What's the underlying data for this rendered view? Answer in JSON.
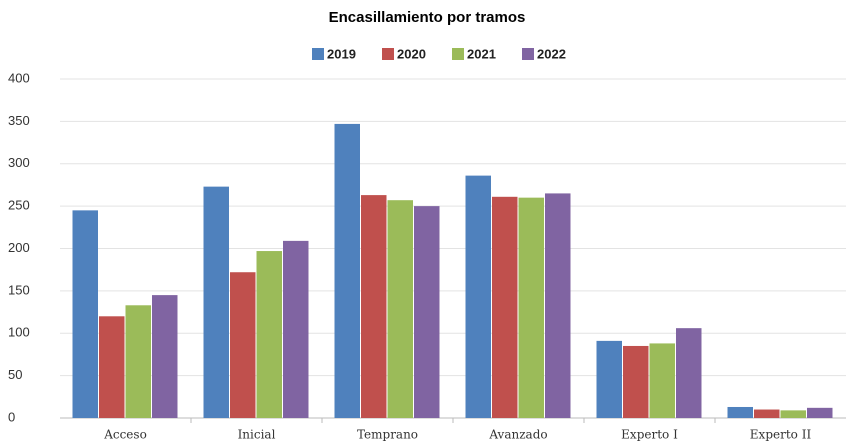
{
  "chart_data": {
    "type": "bar",
    "title": "Encasillamiento por tramos",
    "categories": [
      "Acceso",
      "Inicial",
      "Temprano",
      "Avanzado",
      "Experto I",
      "Experto II"
    ],
    "series": [
      {
        "name": "2019",
        "color": "#4f81bd",
        "values": [
          245,
          273,
          347,
          286,
          91,
          13
        ]
      },
      {
        "name": "2020",
        "color": "#c0504d",
        "values": [
          120,
          172,
          263,
          261,
          85,
          10
        ]
      },
      {
        "name": "2021",
        "color": "#9bbb59",
        "values": [
          133,
          197,
          257,
          260,
          88,
          9
        ]
      },
      {
        "name": "2022",
        "color": "#8064a2",
        "values": [
          145,
          209,
          250,
          265,
          106,
          12
        ]
      }
    ],
    "ylim": [
      0,
      400
    ],
    "yticks": [
      0,
      50,
      100,
      150,
      200,
      250,
      300,
      350,
      400
    ],
    "grid": true,
    "legend": "top"
  }
}
